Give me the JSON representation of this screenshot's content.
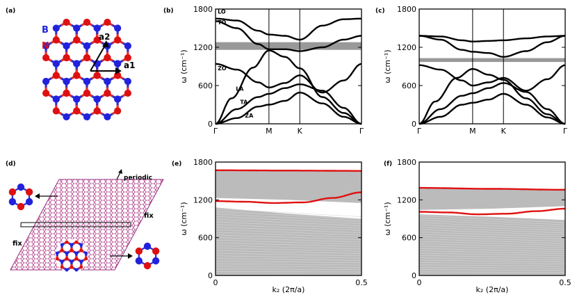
{
  "figure": {
    "panels": {
      "a": {
        "label": "(a)",
        "atom_B": "B",
        "atom_N": "N",
        "vec1": "a1",
        "vec2": "a2"
      },
      "b": {
        "label": "(b)"
      },
      "c": {
        "label": "(c)"
      },
      "d": {
        "label": "(d)",
        "periodic": "periodic",
        "fix_top": "fix",
        "fix_left": "fix"
      },
      "e": {
        "label": "(e)"
      },
      "f": {
        "label": "(f)"
      }
    },
    "colors": {
      "boron": "#2222dd",
      "nitrogen": "#dd1111",
      "bond_red": "#e23030",
      "bond_blue": "#3030cc",
      "band": "#000000",
      "gap": "#999999",
      "ribbon": "#bbbbbb",
      "edge_mode": "#e01010"
    }
  },
  "chart_data": [
    {
      "id": "b",
      "type": "line",
      "title": "",
      "ylabel": "ω (cm⁻¹)",
      "xlabel": "",
      "ylim": [
        0,
        1800
      ],
      "yticks": [
        0,
        600,
        1200,
        1800
      ],
      "xticks": [
        "Γ",
        "M",
        "K",
        "Γ"
      ],
      "xpos": [
        0,
        1,
        1.577,
        2.732
      ],
      "gap_band": [
        1160,
        1280
      ],
      "branch_labels": [
        {
          "text": "LO",
          "x": 0.04,
          "y": 1730
        },
        {
          "text": "TO",
          "x": 0.04,
          "y": 1560
        },
        {
          "text": "ZO",
          "x": 0.04,
          "y": 840
        },
        {
          "text": "LA",
          "x": 0.38,
          "y": 520
        },
        {
          "text": "TA",
          "x": 0.46,
          "y": 310
        },
        {
          "text": "ZA",
          "x": 0.55,
          "y": 100
        }
      ],
      "series": [
        {
          "name": "ZA",
          "x": [
            0,
            0.4,
            0.8,
            1,
            1.3,
            1.577,
            2.0,
            2.4,
            2.732
          ],
          "y": [
            0,
            90,
            270,
            300,
            360,
            490,
            320,
            110,
            0
          ]
        },
        {
          "name": "TA",
          "x": [
            0,
            0.4,
            0.8,
            1,
            1.3,
            1.577,
            2.0,
            2.4,
            2.732
          ],
          "y": [
            0,
            230,
            420,
            470,
            560,
            620,
            520,
            250,
            0
          ]
        },
        {
          "name": "LA",
          "x": [
            0,
            0.3,
            0.7,
            1,
            1.3,
            1.577,
            2.0,
            2.4,
            2.732
          ],
          "y": [
            0,
            400,
            880,
            1150,
            1050,
            870,
            420,
            170,
            0
          ]
        },
        {
          "name": "ZO",
          "x": [
            0,
            0.4,
            0.8,
            1,
            1.3,
            1.577,
            2.0,
            2.4,
            2.732
          ],
          "y": [
            940,
            850,
            650,
            570,
            640,
            760,
            490,
            680,
            940
          ]
        },
        {
          "name": "TO",
          "x": [
            0,
            0.4,
            0.8,
            1,
            1.3,
            1.577,
            2.0,
            2.4,
            2.732
          ],
          "y": [
            1610,
            1500,
            1250,
            1170,
            1170,
            1140,
            1200,
            1320,
            1380
          ]
        },
        {
          "name": "LO",
          "x": [
            0,
            0.4,
            0.8,
            1,
            1.3,
            1.577,
            2.0,
            2.4,
            2.732
          ],
          "y": [
            1650,
            1620,
            1460,
            1400,
            1380,
            1320,
            1540,
            1640,
            1650
          ]
        }
      ]
    },
    {
      "id": "c",
      "type": "line",
      "title": "",
      "ylabel": "ω (cm⁻¹)",
      "xlabel": "",
      "ylim": [
        0,
        1800
      ],
      "yticks": [
        0,
        600,
        1200,
        1800
      ],
      "xticks": [
        "Γ",
        "M",
        "K",
        "Γ"
      ],
      "xpos": [
        0,
        1,
        1.577,
        2.732
      ],
      "gap_band": [
        970,
        1030
      ],
      "series": [
        {
          "name": "ZA",
          "x": [
            0,
            0.4,
            0.8,
            1,
            1.3,
            1.577,
            2.0,
            2.4,
            2.732
          ],
          "y": [
            0,
            110,
            300,
            330,
            380,
            470,
            300,
            100,
            0
          ]
        },
        {
          "name": "TA",
          "x": [
            0,
            0.4,
            0.8,
            1,
            1.3,
            1.577,
            2.0,
            2.4,
            2.732
          ],
          "y": [
            0,
            230,
            440,
            480,
            560,
            640,
            500,
            230,
            0
          ]
        },
        {
          "name": "LA",
          "x": [
            0,
            0.3,
            0.7,
            1,
            1.3,
            1.577,
            2.0,
            2.4,
            2.732
          ],
          "y": [
            0,
            350,
            720,
            860,
            770,
            690,
            400,
            150,
            0
          ]
        },
        {
          "name": "ZO",
          "x": [
            0,
            0.4,
            0.8,
            1,
            1.3,
            1.577,
            2.0,
            2.4,
            2.732
          ],
          "y": [
            920,
            850,
            680,
            600,
            650,
            720,
            520,
            700,
            920
          ]
        },
        {
          "name": "TO",
          "x": [
            0,
            0.4,
            0.8,
            1,
            1.3,
            1.577,
            2.0,
            2.4,
            2.732
          ],
          "y": [
            1380,
            1320,
            1160,
            1130,
            1110,
            1050,
            1140,
            1280,
            1380
          ]
        },
        {
          "name": "LO",
          "x": [
            0,
            0.4,
            0.8,
            1,
            1.3,
            1.577,
            2.0,
            2.4,
            2.732
          ],
          "y": [
            1380,
            1370,
            1310,
            1290,
            1300,
            1310,
            1340,
            1370,
            1380
          ]
        }
      ]
    },
    {
      "id": "e",
      "type": "line",
      "title": "",
      "ylabel": "ω (cm⁻¹)",
      "xlabel": "k₂ (2π/a)",
      "xlim": [
        0,
        0.5
      ],
      "ylim": [
        0,
        1800
      ],
      "yticks": [
        0,
        600,
        1200,
        1800
      ],
      "xticks": [
        0,
        0.5
      ],
      "ribbon_bands": [
        {
          "k": [
            0,
            0.25,
            0.5
          ],
          "low": [
            0,
            0,
            0
          ],
          "high": [
            1080,
            980,
            900
          ]
        },
        {
          "k": [
            0,
            0.25,
            0.5
          ],
          "low": [
            1230,
            1200,
            1150
          ],
          "high": [
            1680,
            1670,
            1650
          ]
        }
      ],
      "series": [
        {
          "name": "edge-top",
          "x": [
            0,
            0.25,
            0.5
          ],
          "y": [
            1670,
            1665,
            1660
          ]
        },
        {
          "name": "edge-mid",
          "x": [
            0,
            0.1,
            0.2,
            0.3,
            0.4,
            0.5
          ],
          "y": [
            1180,
            1170,
            1150,
            1160,
            1230,
            1320
          ]
        }
      ]
    },
    {
      "id": "f",
      "type": "line",
      "title": "",
      "ylabel": "ω (cm⁻¹)",
      "xlabel": "k₂ (2π/a)",
      "xlim": [
        0,
        0.5
      ],
      "ylim": [
        0,
        1800
      ],
      "yticks": [
        0,
        600,
        1200,
        1800
      ],
      "xticks": [
        0,
        0.5
      ],
      "ribbon_bands": [
        {
          "k": [
            0,
            0.25,
            0.5
          ],
          "low": [
            0,
            0,
            0
          ],
          "high": [
            970,
            930,
            880
          ]
        },
        {
          "k": [
            0,
            0.25,
            0.5
          ],
          "low": [
            1040,
            1060,
            1100
          ],
          "high": [
            1390,
            1380,
            1360
          ]
        }
      ],
      "series": [
        {
          "name": "edge-top",
          "x": [
            0,
            0.25,
            0.5
          ],
          "y": [
            1390,
            1375,
            1360
          ]
        },
        {
          "name": "edge-mid",
          "x": [
            0,
            0.1,
            0.2,
            0.3,
            0.4,
            0.5
          ],
          "y": [
            1010,
            1000,
            970,
            980,
            1020,
            1060
          ]
        }
      ]
    }
  ]
}
